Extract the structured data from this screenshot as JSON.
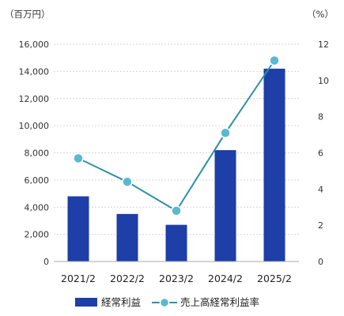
{
  "chart_data": {
    "type": "bar+line",
    "categories": [
      "2021/2",
      "2022/2",
      "2023/2",
      "2024/2",
      "2025/2"
    ],
    "y_left": {
      "unit_label": "（百万円）",
      "ylim": [
        0,
        16000
      ],
      "ticks": [
        "0",
        "2,000",
        "4,000",
        "6,000",
        "8,000",
        "10,000",
        "12,000",
        "14,000",
        "16,000"
      ]
    },
    "y_right": {
      "unit_label": "（%）",
      "ylim": [
        0,
        12
      ],
      "ticks": [
        "0",
        "2",
        "4",
        "6",
        "8",
        "10",
        "12"
      ]
    },
    "grid": true,
    "legend_position": "bottom",
    "series": [
      {
        "name": "経常利益",
        "kind": "bar",
        "axis": "left",
        "color": "#1e3ea8",
        "values": [
          4800,
          3500,
          2700,
          8200,
          14200
        ]
      },
      {
        "name": "売上高経常利益率",
        "kind": "line",
        "axis": "right",
        "color": "#2f90a8",
        "marker_color": "#5ab8d0",
        "values": [
          5.7,
          4.4,
          2.8,
          7.1,
          11.1
        ]
      }
    ]
  }
}
